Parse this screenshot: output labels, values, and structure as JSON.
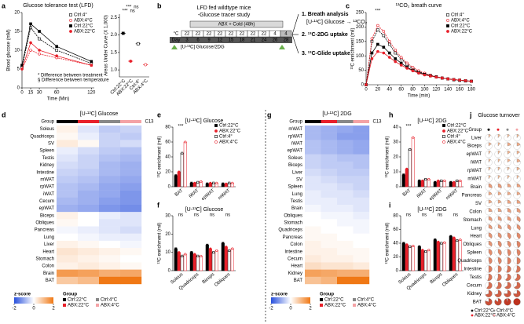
{
  "panel_labels": [
    "a",
    "b",
    "c",
    "d",
    "e",
    "f",
    "g",
    "h",
    "i",
    "j"
  ],
  "a": {
    "chart_data": {
      "type": "line",
      "title": "Glucose tolerance test (LFD)",
      "x_label": "Time (Min)",
      "y_label": "Blood glucose (mM)",
      "xlim": [
        0,
        125
      ],
      "xticks": [
        0,
        15,
        30,
        60,
        120
      ],
      "ylim": [
        0,
        20
      ],
      "yticks": [
        0,
        5,
        10,
        15,
        20
      ],
      "legend": "upper right",
      "x": [
        0,
        15,
        30,
        60,
        120
      ],
      "series": [
        {
          "name": "Ctrl:4°",
          "color": "#000000",
          "marker": "square",
          "fill": false,
          "values": [
            5.5,
            16,
            13,
            10,
            6.5
          ]
        },
        {
          "name": "ABX:4°C",
          "color": "#e8202a",
          "marker": "circle",
          "fill": false,
          "values": [
            5,
            10,
            9,
            8,
            6
          ]
        },
        {
          "name": "Ctrl:22°C",
          "color": "#000000",
          "marker": "square",
          "fill": true,
          "values": [
            6,
            17,
            15,
            11,
            7
          ]
        },
        {
          "name": "ABX:22°C",
          "color": "#e8202a",
          "marker": "circle",
          "fill": true,
          "values": [
            5,
            12,
            10,
            8.5,
            6
          ]
        }
      ],
      "annotations": [
        "* Difference between treatment",
        "§ Difference between temperature"
      ]
    }
  },
  "a_auc": {
    "chart_data": {
      "type": "dot",
      "y_label": "Areas Under Curve (X 1,000)",
      "ylim": [
        0.8,
        2.6
      ],
      "yticks": [
        {
          "value": 1,
          "label": "1.0"
        },
        1.5,
        {
          "value": 2,
          "label": "2.0"
        },
        2.5
      ],
      "categories": [
        "Ctrl:22°C",
        "ABX:22°C",
        "Ctrl:4°",
        "ABX:4°C"
      ],
      "values": [
        2.05,
        1.25,
        1.75,
        1.15
      ],
      "colors": [
        "#000000",
        "#e8202a",
        "#000000",
        "#e8202a"
      ],
      "markers": [
        "square",
        "circle",
        "square",
        "circle"
      ],
      "fills": [
        true,
        true,
        false,
        false
      ],
      "sig": [
        "***",
        "***",
        "ns",
        "ns"
      ]
    }
  },
  "b": {
    "title": "LFD fed wildtype mice",
    "subtitle": "-Glucose tracer study",
    "bar_label": "ABX + Cold (48h)",
    "temp_header": "°C",
    "day_header": "Day",
    "temps": [
      22,
      22,
      22,
      22,
      22,
      22,
      22,
      22,
      4,
      4
    ],
    "days": [
      3,
      6,
      9,
      12,
      15,
      18,
      21,
      24,
      26,
      28
    ],
    "tracer": "[U-¹³C] Glucose/2DG",
    "steps": [
      "1. Breath analysis",
      "[U-¹³C] Glucose → ¹³CO₂",
      "2. ¹³C-2DG uptake",
      "3. ¹³C-Glide uptake"
    ]
  },
  "c": {
    "chart_data": {
      "type": "line",
      "title": "¹³CO₂ breath curve",
      "x_label": "Time (min)",
      "y_label": "¹³C enrichment (mil)",
      "xlim": [
        0,
        180
      ],
      "xticks": [
        0,
        20,
        40,
        60,
        80,
        100,
        120,
        140,
        160,
        180
      ],
      "ylim": [
        0,
        250
      ],
      "yticks": [
        0,
        50,
        100,
        150,
        200,
        250
      ],
      "legend": "upper right",
      "x": [
        0,
        10,
        20,
        30,
        40,
        50,
        60,
        70,
        80,
        90,
        100,
        110,
        120,
        130,
        140,
        150,
        160,
        170,
        180
      ],
      "series": [
        {
          "name": "Ctrl:4°",
          "color": "#000000",
          "marker": "square",
          "fill": false,
          "values": [
            0,
            150,
            190,
            170,
            140,
            110,
            90,
            70,
            55,
            45,
            38,
            32,
            27,
            23,
            20,
            17,
            15,
            13,
            12
          ]
        },
        {
          "name": "ABX:4°C",
          "color": "#e8202a",
          "marker": "circle",
          "fill": false,
          "values": [
            0,
            160,
            205,
            185,
            150,
            120,
            95,
            75,
            60,
            48,
            40,
            33,
            28,
            24,
            21,
            18,
            16,
            14,
            12
          ]
        },
        {
          "name": "Ctrl:22°C",
          "color": "#000000",
          "marker": "square",
          "fill": true,
          "values": [
            0,
            110,
            140,
            130,
            110,
            90,
            75,
            60,
            50,
            42,
            36,
            31,
            27,
            23,
            20,
            18,
            16,
            14,
            12
          ]
        },
        {
          "name": "ABX:22°C",
          "color": "#e8202a",
          "marker": "circle",
          "fill": true,
          "values": [
            0,
            90,
            115,
            110,
            95,
            80,
            68,
            57,
            48,
            40,
            34,
            30,
            26,
            23,
            20,
            18,
            16,
            14,
            12
          ]
        }
      ],
      "annotations": [
        "***"
      ]
    }
  },
  "d": {
    "chart_data": {
      "type": "heatmap",
      "title": "[U-¹³C] Glucose",
      "group_label": "Group",
      "side_label": "C13",
      "group_colors": [
        "#000000",
        "#e8202a",
        "#888888",
        "#f4a3a6"
      ],
      "zlim": [
        -2,
        2
      ],
      "rows": [
        "Soleus",
        "Quadriceps",
        "SV",
        "Spleen",
        "Testis",
        "Kidney",
        "Intestine",
        "mWAT",
        "rpWAT",
        "iWAT",
        "Cecum",
        "epWAT",
        "Biceps",
        "Obliques",
        "Pancreas",
        "Lung",
        "Liver",
        "Heart",
        "Stomach",
        "Colon",
        "Brain",
        "BAT"
      ],
      "values": [
        [
          0.2,
          -0.3,
          -0.6,
          -0.5
        ],
        [
          0.1,
          -0.2,
          -0.5,
          -0.6
        ],
        [
          0.3,
          0.1,
          -0.5,
          -0.4
        ],
        [
          -0.2,
          -0.4,
          -0.6,
          -0.7
        ],
        [
          -0.3,
          -0.5,
          -0.7,
          -0.8
        ],
        [
          -0.4,
          -0.5,
          -0.8,
          -0.9
        ],
        [
          -0.5,
          -0.6,
          -0.8,
          -0.9
        ],
        [
          -0.6,
          -0.7,
          -0.9,
          -1
        ],
        [
          -0.7,
          -0.8,
          -1,
          -1.1
        ],
        [
          -0.7,
          -0.9,
          -1,
          -1.2
        ],
        [
          -0.8,
          -0.9,
          -1.1,
          -1.2
        ],
        [
          -0.9,
          -1,
          -1.2,
          -1.3
        ],
        [
          0.2,
          0,
          -0.2,
          -0.3
        ],
        [
          0.1,
          0,
          -0.3,
          -0.3
        ],
        [
          -0.1,
          -0.2,
          -0.3,
          -0.4
        ],
        [
          0,
          -0.1,
          -0.2,
          -0.2
        ],
        [
          0.2,
          0.1,
          0,
          -0.1
        ],
        [
          0.4,
          0.3,
          0.2,
          0.1
        ],
        [
          0.3,
          0.2,
          0.1,
          0
        ],
        [
          0.2,
          0.3,
          0.2,
          0.1
        ],
        [
          1.5,
          1.4,
          1.2,
          1.3
        ],
        [
          0.8,
          1,
          2,
          2.2
        ]
      ]
    }
  },
  "d_legend": {
    "z_title": "z-score",
    "zticks": [
      -2,
      0,
      2
    ],
    "group_title": "Group",
    "groups": [
      "Ctrl:22°C",
      "ABX:22°C",
      "Ctrl:4°C",
      "ABX:4°C"
    ]
  },
  "e": {
    "chart_data": {
      "type": "dotbar",
      "title": "[U-¹³C] Glucose",
      "y_label": "¹³C enrichment (mil)",
      "ylim": [
        0,
        80
      ],
      "yticks": [
        0,
        20,
        40,
        60,
        80
      ],
      "legend": "right",
      "categories": [
        "BAT",
        "iWAT",
        "epWAT",
        "mWAT"
      ],
      "sig": [
        "***",
        "",
        "",
        ""
      ],
      "series": [
        {
          "name": "Ctrl:22°C",
          "color": "#000000",
          "marker": "square",
          "fill": true,
          "values": [
            15,
            5,
            4,
            4
          ]
        },
        {
          "name": "ABX:22°C",
          "color": "#e8202a",
          "marker": "circle",
          "fill": true,
          "values": [
            20,
            5,
            5,
            4
          ]
        },
        {
          "name": "Ctrl:4°",
          "color": "#000000",
          "marker": "square",
          "fill": false,
          "values": [
            45,
            6,
            5,
            5
          ]
        },
        {
          "name": "ABX:4°C",
          "color": "#e8202a",
          "marker": "circle",
          "fill": false,
          "values": [
            60,
            7,
            5,
            5
          ]
        }
      ]
    }
  },
  "f": {
    "chart_data": {
      "type": "dotbar",
      "title": "[U-¹³C] Glucose",
      "y_label": "¹³C enrichment (mil)",
      "ylim": [
        0,
        30
      ],
      "yticks": [
        0,
        10,
        20,
        30
      ],
      "categories": [
        "Soleus",
        "Quadriceps",
        "Biceps",
        "Obliques"
      ],
      "sig": [
        "ns",
        "ns",
        "ns",
        "ns"
      ],
      "series": [
        {
          "color": "#000000",
          "marker": "square",
          "fill": true,
          "values": [
            12,
            10,
            14,
            15
          ]
        },
        {
          "color": "#e8202a",
          "marker": "circle",
          "fill": true,
          "values": [
            10,
            9,
            12,
            13
          ]
        },
        {
          "color": "#000000",
          "marker": "square",
          "fill": false,
          "values": [
            8,
            8,
            10,
            11
          ]
        },
        {
          "color": "#e8202a",
          "marker": "circle",
          "fill": false,
          "values": [
            9,
            8,
            11,
            12
          ]
        }
      ]
    }
  },
  "g": {
    "chart_data": {
      "type": "heatmap",
      "title": "[U-¹³C] 2DG",
      "group_label": "Group",
      "side_label": "C13",
      "group_colors": [
        "#000000",
        "#e8202a",
        "#888888",
        "#f4a3a6"
      ],
      "zlim": [
        -2,
        2
      ],
      "rows": [
        "mWAT",
        "rpWAT",
        "iWAT",
        "epWAT",
        "Soleus",
        "Biceps",
        "Liver",
        "SV",
        "Spleen",
        "Lung",
        "Testis",
        "Brain",
        "Obliques",
        "Stomach",
        "Quadriceps",
        "Pancreas",
        "Colon",
        "Intestine",
        "Cecum",
        "Heart",
        "Kidney",
        "BAT"
      ],
      "values": [
        [
          -0.8,
          -0.9,
          -1,
          -1.1
        ],
        [
          -0.8,
          -0.9,
          -1.1,
          -1.1
        ],
        [
          -0.7,
          -0.8,
          -0.9,
          -1
        ],
        [
          -0.7,
          -0.8,
          -0.9,
          -1
        ],
        [
          -0.5,
          -0.6,
          -0.7,
          -0.7
        ],
        [
          -0.5,
          -0.6,
          -0.6,
          -0.7
        ],
        [
          -0.4,
          -0.5,
          -0.6,
          -0.6
        ],
        [
          -0.3,
          -0.4,
          -0.5,
          -0.5
        ],
        [
          -0.3,
          -0.3,
          -0.4,
          -0.5
        ],
        [
          -0.2,
          -0.3,
          -0.3,
          -0.4
        ],
        [
          -0.2,
          -0.2,
          -0.3,
          -0.3
        ],
        [
          -0.1,
          -0.2,
          -0.2,
          -0.3
        ],
        [
          0,
          -0.1,
          -0.1,
          -0.2
        ],
        [
          0,
          0,
          -0.1,
          -0.1
        ],
        [
          0.1,
          0,
          0,
          -0.1
        ],
        [
          0.1,
          0.1,
          0,
          0
        ],
        [
          0.2,
          0.1,
          0.1,
          0
        ],
        [
          0.2,
          0.2,
          0.1,
          0.1
        ],
        [
          0.3,
          0.2,
          0.2,
          0.1
        ],
        [
          0.5,
          0.4,
          0.4,
          0.3
        ],
        [
          1.4,
          1.3,
          1.2,
          1.2
        ],
        [
          0.9,
          1.1,
          2,
          2.2
        ]
      ]
    }
  },
  "g_legend": {
    "z_title": "z-score",
    "zticks": [
      -2,
      0,
      2
    ],
    "group_title": "Group",
    "groups": [
      "Ctrl:22°C",
      "ABX:22°C",
      "Ctrl:4°C",
      "ABX:4°C"
    ]
  },
  "h": {
    "chart_data": {
      "type": "dotbar",
      "title": "[U-¹³C] 2DG",
      "y_label": "¹³C enrichment (mil)",
      "ylim": [
        0,
        40
      ],
      "yticks": [
        0,
        10,
        20,
        30,
        40
      ],
      "legend": "right",
      "categories": [
        "BAT",
        "iWAT",
        "epWAT",
        "mWAT"
      ],
      "sig": [
        "***",
        "",
        "",
        ""
      ],
      "series": [
        {
          "name": "Ctrl:22°C",
          "color": "#000000",
          "marker": "square",
          "fill": true,
          "values": [
            8,
            4,
            3,
            3
          ]
        },
        {
          "name": "ABX:22°C",
          "color": "#e8202a",
          "marker": "circle",
          "fill": true,
          "values": [
            12,
            4,
            4,
            3
          ]
        },
        {
          "name": "Ctrl:4°",
          "color": "#000000",
          "marker": "square",
          "fill": false,
          "values": [
            25,
            5,
            4,
            4
          ]
        },
        {
          "name": "ABX:4°C",
          "color": "#e8202a",
          "marker": "circle",
          "fill": false,
          "values": [
            33,
            5,
            4,
            4
          ]
        }
      ]
    }
  },
  "i": {
    "chart_data": {
      "type": "dotbar",
      "title": "[U-¹³C] 2DG",
      "y_label": "¹³C enrichment (mil)",
      "ylim": [
        0,
        80
      ],
      "yticks": [
        0,
        20,
        40,
        60,
        80
      ],
      "categories": [
        "Soleus",
        "Quadriceps",
        "Biceps",
        "Obliques"
      ],
      "sig": [
        "ns",
        "ns",
        "ns",
        "ns"
      ],
      "series": [
        {
          "color": "#000000",
          "marker": "square",
          "fill": true,
          "values": [
            40,
            35,
            45,
            50
          ]
        },
        {
          "color": "#e8202a",
          "marker": "circle",
          "fill": true,
          "values": [
            38,
            30,
            42,
            48
          ]
        },
        {
          "color": "#000000",
          "marker": "square",
          "fill": false,
          "values": [
            35,
            28,
            40,
            44
          ]
        },
        {
          "color": "#e8202a",
          "marker": "circle",
          "fill": false,
          "values": [
            36,
            30,
            41,
            45
          ]
        }
      ]
    }
  },
  "j": {
    "chart_data": {
      "type": "pie_grid",
      "title": "Glucose turnover",
      "group_label": "Group",
      "group_colors": [
        "#000000",
        "#e8202a",
        "#888888",
        "#f4a3a6"
      ],
      "rows": [
        "Liver",
        "Biceps",
        "epWAT",
        "iWAT",
        "rpWAT",
        "mWAT",
        "Brain",
        "Pancreas",
        "SV",
        "Colon",
        "Stomach",
        "Lung",
        "Heart",
        "Obliques",
        "Spleen",
        "Quadriceps",
        "Intestine",
        "Testis",
        "Cecum",
        "Kidney",
        "BAT"
      ],
      "values": [
        [
          0.1,
          0.1,
          0.1,
          0.1
        ],
        [
          0.15,
          0.1,
          0.2,
          0.2
        ],
        [
          0.1,
          0.1,
          0.15,
          0.15
        ],
        [
          0.1,
          0.1,
          0.15,
          0.2
        ],
        [
          0.1,
          0.1,
          0.1,
          0.15
        ],
        [
          0.1,
          0.1,
          0.1,
          0.1
        ],
        [
          0.3,
          0.3,
          0.25,
          0.25
        ],
        [
          0.2,
          0.2,
          0.2,
          0.2
        ],
        [
          0.2,
          0.2,
          0.25,
          0.25
        ],
        [
          0.25,
          0.25,
          0.3,
          0.3
        ],
        [
          0.3,
          0.3,
          0.3,
          0.35
        ],
        [
          0.3,
          0.3,
          0.35,
          0.35
        ],
        [
          0.35,
          0.35,
          0.4,
          0.4
        ],
        [
          0.35,
          0.4,
          0.4,
          0.45
        ],
        [
          0.4,
          0.4,
          0.45,
          0.45
        ],
        [
          0.45,
          0.45,
          0.5,
          0.5
        ],
        [
          0.5,
          0.5,
          0.55,
          0.55
        ],
        [
          0.55,
          0.55,
          0.6,
          0.6
        ],
        [
          0.6,
          0.6,
          0.65,
          0.65
        ],
        [
          0.7,
          0.7,
          0.75,
          0.75
        ],
        [
          0.8,
          0.85,
          0.95,
          1
        ]
      ],
      "legend_groups": [
        "Ctrl:22°C",
        "Ctrl:4°C",
        "ABX:22°C",
        "ABX:4°C"
      ]
    }
  }
}
